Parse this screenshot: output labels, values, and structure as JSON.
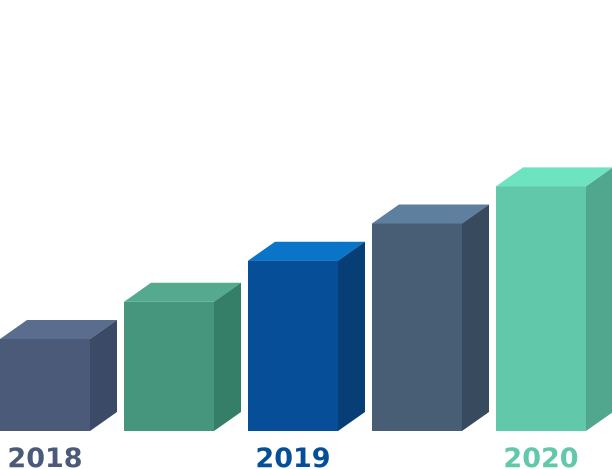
{
  "chart_data": {
    "type": "bar",
    "style": "3d",
    "title": "",
    "xlabel": "",
    "ylabel": "",
    "grid": false,
    "legend": "none",
    "bars": [
      {
        "value": 0.47,
        "face": "#4a5a78",
        "top": "#5b6d8e",
        "side": "#3b4a66"
      },
      {
        "value": 0.66,
        "face": "#46957d",
        "top": "#55a98f",
        "side": "#357f69"
      },
      {
        "value": 0.87,
        "face": "#064f98",
        "top": "#0a74c9",
        "side": "#063e75"
      },
      {
        "value": 1.06,
        "face": "#475e74",
        "top": "#5f7f9e",
        "side": "#384b5e"
      },
      {
        "value": 1.25,
        "face": "#62c8aa",
        "top": "#6ee3c0",
        "side": "#50a78d"
      }
    ],
    "year_labels": [
      {
        "text": "2018",
        "bar_index": 0,
        "color": "#4a5a78"
      },
      {
        "text": "2019",
        "bar_index": 2,
        "color": "#064f98"
      },
      {
        "text": "2020",
        "bar_index": 4,
        "color": "#62c8aa"
      }
    ]
  }
}
